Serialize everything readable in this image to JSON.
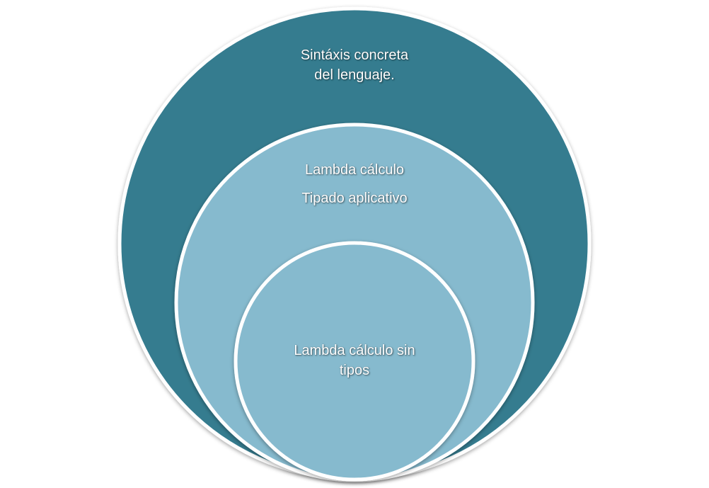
{
  "diagram": {
    "outer": {
      "line1": "Sintáxis concreta",
      "line2": "del lenguaje.",
      "fill": "#357C8F"
    },
    "middle": {
      "line1": "Lambda cálculo",
      "line2": "Tipado aplicativo",
      "fill": "#86BACE"
    },
    "inner": {
      "line1": "Lambda cálculo sin",
      "line2": "tipos",
      "fill": "#86BACE"
    },
    "border_color": "#FFFFFF"
  }
}
